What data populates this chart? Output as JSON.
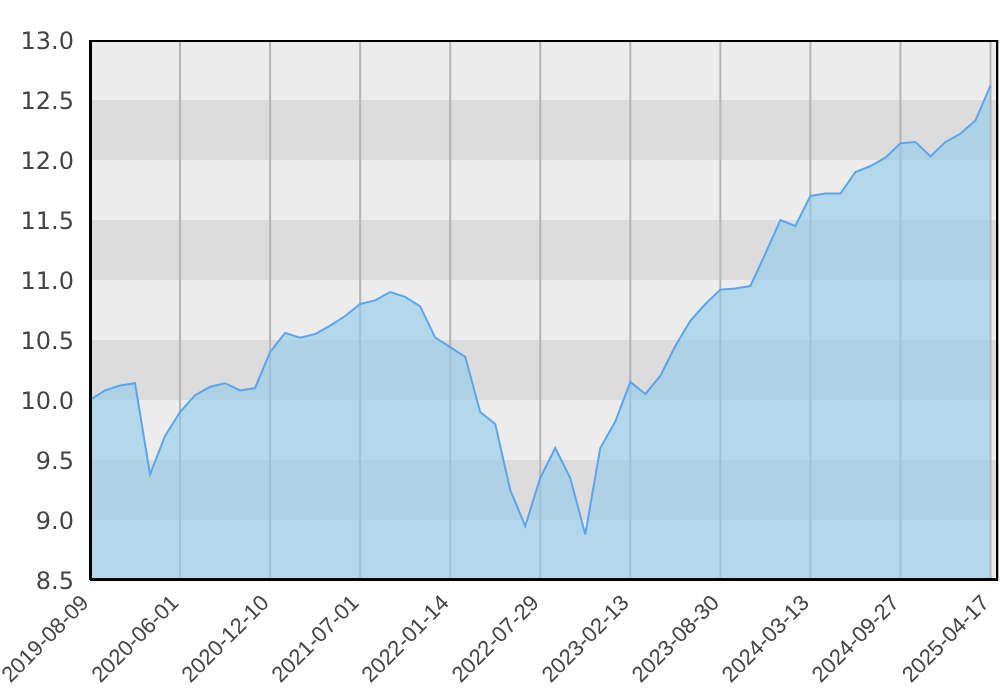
{
  "chart_data": {
    "type": "area",
    "categories": [
      "2019-08-09",
      null,
      null,
      null,
      null,
      null,
      "2020-06-01",
      null,
      null,
      null,
      null,
      null,
      "2020-12-10",
      null,
      null,
      null,
      null,
      null,
      "2021-07-01",
      null,
      null,
      null,
      null,
      null,
      "2022-01-14",
      null,
      null,
      null,
      null,
      null,
      "2022-07-29",
      null,
      null,
      null,
      null,
      null,
      "2023-02-13",
      null,
      null,
      null,
      null,
      null,
      "2023-08-30",
      null,
      null,
      null,
      null,
      null,
      "2024-03-13",
      null,
      null,
      null,
      null,
      null,
      "2024-09-27",
      null,
      null,
      null,
      null,
      null,
      "2025-04-17"
    ],
    "series": [
      {
        "color": "#5aa5f0",
        "values": [
          10.0,
          10.08,
          10.12,
          10.14,
          9.38,
          9.7,
          9.9,
          10.04,
          10.11,
          10.14,
          10.08,
          10.1,
          10.4,
          10.56,
          10.52,
          10.55,
          10.62,
          10.7,
          10.8,
          10.83,
          10.9,
          10.86,
          10.78,
          10.52,
          10.44,
          10.36,
          9.9,
          9.8,
          9.25,
          8.95,
          9.35,
          9.6,
          9.35,
          8.88,
          9.6,
          9.82,
          10.15,
          10.05,
          10.2,
          10.45,
          10.66,
          10.8,
          10.92,
          10.93,
          10.95,
          11.22,
          11.5,
          11.45,
          11.7,
          11.72,
          11.72,
          11.9,
          11.95,
          12.02,
          12.14,
          12.15,
          12.03,
          12.15,
          12.22,
          12.33,
          12.62
        ]
      }
    ],
    "ylim": [
      8.5,
      13.0
    ],
    "yticks": [
      {
        "value": 8.5,
        "label": "8.5"
      },
      {
        "value": 9,
        "label": "9.0"
      },
      {
        "value": 9.5,
        "label": "9.5"
      },
      {
        "value": 10,
        "label": "10.0"
      },
      {
        "value": 10.5,
        "label": "10.5"
      },
      {
        "value": 11,
        "label": "11.0"
      },
      {
        "value": 11.5,
        "label": "11.5"
      },
      {
        "value": 12,
        "label": "12.0"
      },
      {
        "value": 12.5,
        "label": "12.5"
      },
      {
        "value": 13,
        "label": "13.0"
      }
    ],
    "bands": [
      {
        "axis": "y",
        "from": 8.5,
        "to": 9,
        "color": "#ececec"
      },
      {
        "axis": "y",
        "from": 9,
        "to": 9.5,
        "color": "#dcdcdc"
      },
      {
        "axis": "y",
        "from": 9.5,
        "to": 10,
        "color": "#ececec"
      },
      {
        "axis": "y",
        "from": 10,
        "to": 10.5,
        "color": "#dcdcdc"
      },
      {
        "axis": "y",
        "from": 10.5,
        "to": 11,
        "color": "#ececec"
      },
      {
        "axis": "y",
        "from": 11,
        "to": 11.5,
        "color": "#dcdcdc"
      },
      {
        "axis": "y",
        "from": 11.5,
        "to": 12,
        "color": "#ececec"
      },
      {
        "axis": "y",
        "from": 12,
        "to": 12.5,
        "color": "#dcdcdc"
      },
      {
        "axis": "y",
        "from": 12.5,
        "to": 13,
        "color": "#ececec"
      }
    ],
    "grid": "x",
    "legend": false
  }
}
